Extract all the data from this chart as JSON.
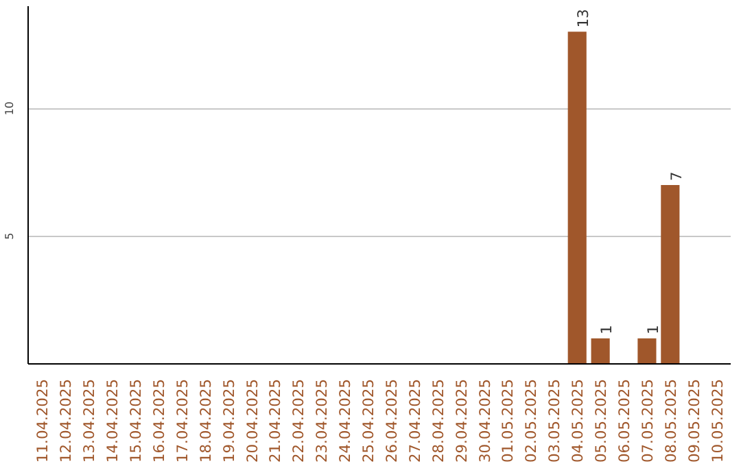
{
  "chart_data": {
    "type": "bar",
    "categories": [
      "11.04.2025",
      "12.04.2025",
      "13.04.2025",
      "14.04.2025",
      "15.04.2025",
      "16.04.2025",
      "17.04.2025",
      "18.04.2025",
      "19.04.2025",
      "20.04.2025",
      "21.04.2025",
      "22.04.2025",
      "23.04.2025",
      "24.04.2025",
      "25.04.2025",
      "26.04.2025",
      "27.04.2025",
      "28.04.2025",
      "29.04.2025",
      "30.04.2025",
      "01.05.2025",
      "02.05.2025",
      "03.05.2025",
      "04.05.2025",
      "05.05.2025",
      "06.05.2025",
      "07.05.2025",
      "08.05.2025",
      "09.05.2025",
      "10.05.2025"
    ],
    "values": [
      0,
      0,
      0,
      0,
      0,
      0,
      0,
      0,
      0,
      0,
      0,
      0,
      0,
      0,
      0,
      0,
      0,
      0,
      0,
      0,
      0,
      0,
      0,
      13,
      1,
      0,
      1,
      7,
      0,
      0
    ],
    "value_labels": [
      null,
      null,
      null,
      null,
      null,
      null,
      null,
      null,
      null,
      null,
      null,
      null,
      null,
      null,
      null,
      null,
      null,
      null,
      null,
      null,
      null,
      null,
      null,
      "13",
      "1",
      null,
      "1",
      "7",
      null,
      null
    ],
    "color": "#a0572b",
    "ylim": [
      0,
      14
    ],
    "yticks": [
      5,
      10
    ],
    "grid": "y"
  }
}
